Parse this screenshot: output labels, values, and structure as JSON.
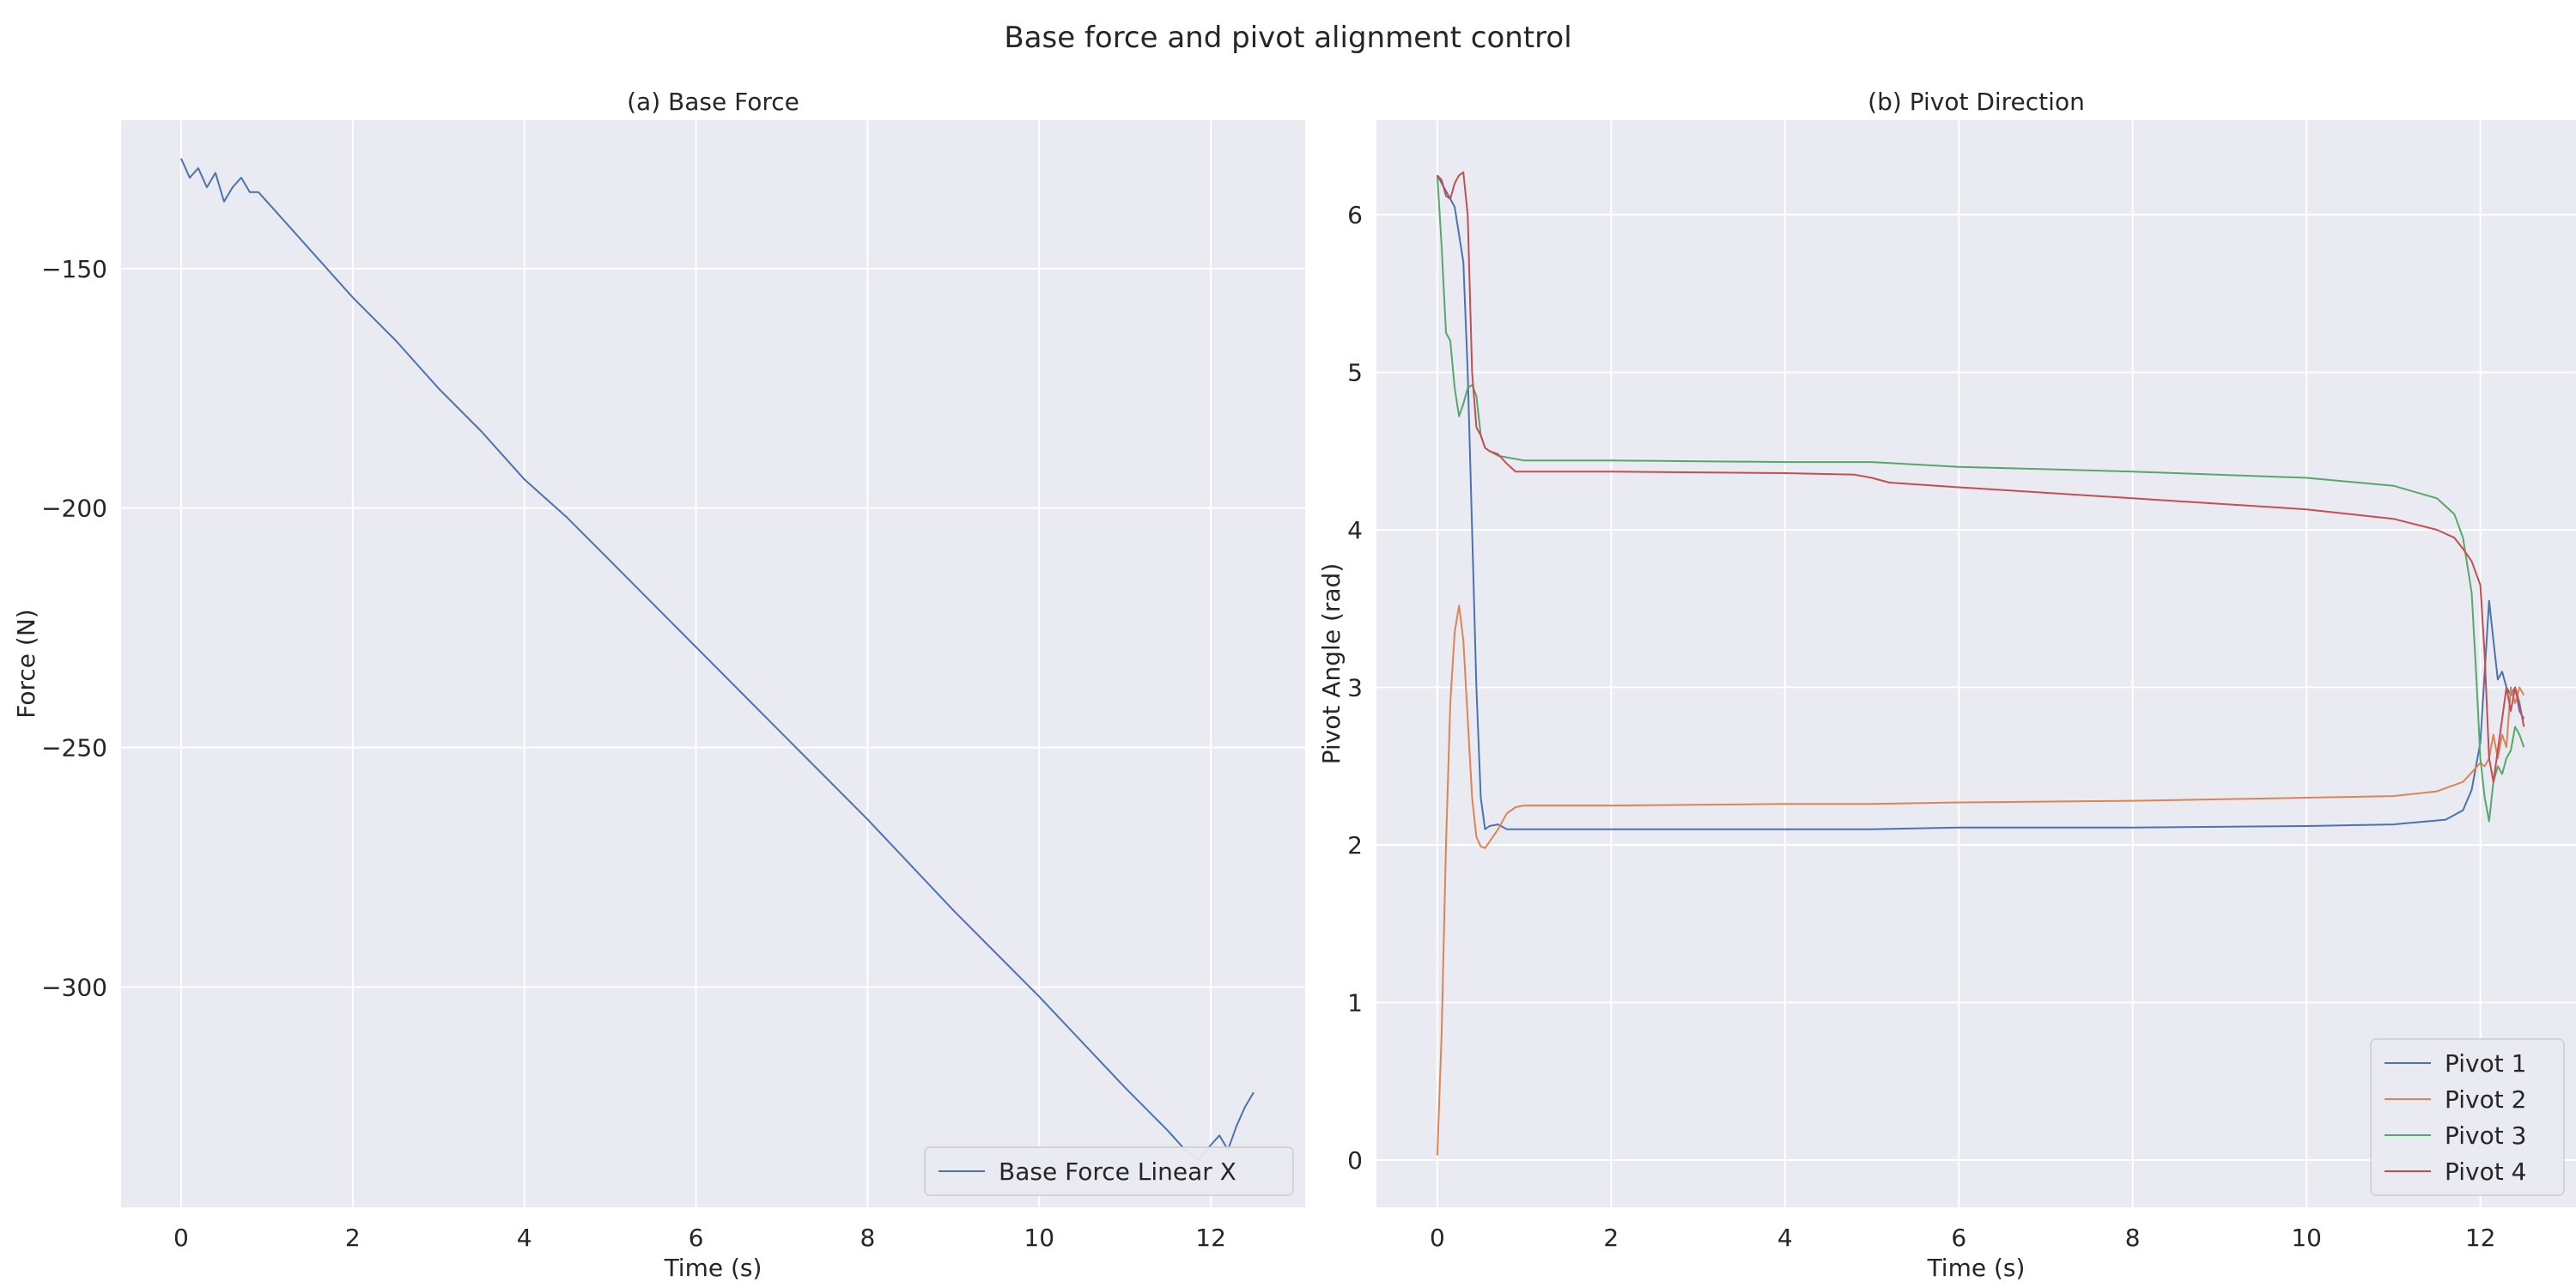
{
  "figure": {
    "title": "Base force and pivot alignment control"
  },
  "chart_data": [
    {
      "type": "line",
      "title": "(a) Base Force",
      "xlabel": "Time (s)",
      "ylabel": "Force (N)",
      "xlim": [
        -0.7,
        13.1
      ],
      "ylim": [
        -346,
        -119
      ],
      "xticks": [
        0,
        2,
        4,
        6,
        8,
        10,
        12
      ],
      "yticks": [
        -150,
        -200,
        -250,
        -300
      ],
      "xtick_labels": [
        "0",
        "2",
        "4",
        "6",
        "8",
        "10",
        "12"
      ],
      "ytick_labels": [
        "−150",
        "−200",
        "−250",
        "−300"
      ],
      "grid": true,
      "legend": "bottom-right",
      "series": [
        {
          "name": "Base Force Linear X",
          "color": "#4c72b0",
          "x": [
            0,
            0.1,
            0.2,
            0.3,
            0.4,
            0.5,
            0.6,
            0.7,
            0.8,
            0.9,
            1.0,
            1.5,
            2.0,
            2.5,
            3.0,
            3.5,
            4.0,
            4.5,
            5.0,
            6.0,
            7.0,
            8.0,
            9.0,
            10.0,
            11.0,
            11.5,
            11.7,
            11.85,
            12.0,
            12.1,
            12.2,
            12.3,
            12.4,
            12.5
          ],
          "y": [
            -127,
            -131,
            -129,
            -133,
            -130,
            -136,
            -133,
            -131,
            -134,
            -134,
            -136,
            -146,
            -156,
            -165,
            -175,
            -184,
            -194,
            -202,
            -211,
            -229,
            -247,
            -265,
            -284,
            -302,
            -321,
            -330,
            -334,
            -336,
            -333,
            -331,
            -334,
            -329,
            -325,
            -322
          ]
        }
      ]
    },
    {
      "type": "line",
      "title": "(b) Pivot Direction",
      "xlabel": "Time (s)",
      "ylabel": "Pivot Angle (rad)",
      "xlim": [
        -0.7,
        13.1
      ],
      "ylim": [
        -0.3,
        6.6
      ],
      "xticks": [
        0,
        2,
        4,
        6,
        8,
        10,
        12
      ],
      "yticks": [
        0,
        1,
        2,
        3,
        4,
        5,
        6
      ],
      "xtick_labels": [
        "0",
        "2",
        "4",
        "6",
        "8",
        "10",
        "12"
      ],
      "ytick_labels": [
        "0",
        "1",
        "2",
        "3",
        "4",
        "5",
        "6"
      ],
      "grid": true,
      "legend": "bottom-right",
      "series": [
        {
          "name": "Pivot 1",
          "color": "#4c72b0",
          "x": [
            0,
            0.1,
            0.2,
            0.3,
            0.35,
            0.4,
            0.45,
            0.5,
            0.55,
            0.6,
            0.7,
            0.8,
            1.0,
            2,
            4,
            5,
            6,
            8,
            10,
            11,
            11.6,
            11.8,
            11.9,
            12.0,
            12.05,
            12.1,
            12.15,
            12.2,
            12.25,
            12.3,
            12.35,
            12.4,
            12.45,
            12.5
          ],
          "y": [
            6.25,
            6.15,
            6.05,
            5.7,
            5.0,
            4.0,
            3.0,
            2.3,
            2.1,
            2.12,
            2.13,
            2.1,
            2.1,
            2.1,
            2.1,
            2.1,
            2.11,
            2.11,
            2.12,
            2.13,
            2.16,
            2.22,
            2.35,
            2.65,
            3.1,
            3.55,
            3.3,
            3.05,
            3.1,
            3.0,
            2.95,
            3.0,
            2.85,
            2.8
          ]
        },
        {
          "name": "Pivot 2",
          "color": "#dd8452",
          "x": [
            0,
            0.05,
            0.1,
            0.15,
            0.2,
            0.25,
            0.3,
            0.35,
            0.4,
            0.45,
            0.5,
            0.55,
            0.6,
            0.7,
            0.8,
            0.9,
            1.0,
            2,
            4,
            5,
            6,
            8,
            10,
            11,
            11.5,
            11.8,
            11.9,
            12.0,
            12.05,
            12.1,
            12.15,
            12.2,
            12.25,
            12.3,
            12.35,
            12.4,
            12.45,
            12.5
          ],
          "y": [
            0.03,
            0.8,
            2.0,
            2.9,
            3.35,
            3.52,
            3.3,
            2.8,
            2.3,
            2.05,
            1.99,
            1.98,
            2.02,
            2.1,
            2.2,
            2.24,
            2.25,
            2.25,
            2.26,
            2.26,
            2.27,
            2.28,
            2.3,
            2.31,
            2.34,
            2.4,
            2.46,
            2.52,
            2.5,
            2.55,
            2.7,
            2.55,
            2.7,
            2.62,
            3.0,
            2.9,
            3.0,
            2.95
          ]
        },
        {
          "name": "Pivot 3",
          "color": "#55a868",
          "x": [
            0,
            0.05,
            0.1,
            0.15,
            0.2,
            0.25,
            0.3,
            0.35,
            0.4,
            0.45,
            0.5,
            0.55,
            0.6,
            0.7,
            0.8,
            1.0,
            2,
            4,
            5,
            6,
            8,
            10,
            11,
            11.5,
            11.7,
            11.8,
            11.9,
            11.95,
            12.0,
            12.05,
            12.1,
            12.15,
            12.2,
            12.25,
            12.3,
            12.35,
            12.4,
            12.45,
            12.5
          ],
          "y": [
            6.25,
            5.8,
            5.25,
            5.2,
            4.9,
            4.72,
            4.8,
            4.9,
            4.92,
            4.85,
            4.6,
            4.52,
            4.5,
            4.47,
            4.46,
            4.44,
            4.44,
            4.43,
            4.43,
            4.4,
            4.37,
            4.33,
            4.28,
            4.2,
            4.1,
            3.95,
            3.6,
            3.1,
            2.55,
            2.3,
            2.15,
            2.4,
            2.5,
            2.45,
            2.55,
            2.6,
            2.75,
            2.7,
            2.62
          ]
        },
        {
          "name": "Pivot 4",
          "color": "#c44e52",
          "x": [
            0,
            0.05,
            0.1,
            0.15,
            0.2,
            0.25,
            0.3,
            0.35,
            0.4,
            0.45,
            0.5,
            0.55,
            0.6,
            0.7,
            0.8,
            0.9,
            1.0,
            2,
            4,
            4.8,
            5.0,
            5.2,
            6,
            8,
            10,
            11,
            11.5,
            11.7,
            11.8,
            11.9,
            12.0,
            12.05,
            12.1,
            12.15,
            12.2,
            12.25,
            12.3,
            12.35,
            12.4,
            12.45,
            12.5
          ],
          "y": [
            6.25,
            6.22,
            6.12,
            6.1,
            6.2,
            6.25,
            6.27,
            6.0,
            5.0,
            4.65,
            4.6,
            4.52,
            4.5,
            4.48,
            4.42,
            4.37,
            4.37,
            4.37,
            4.36,
            4.35,
            4.33,
            4.3,
            4.27,
            4.2,
            4.13,
            4.07,
            4.0,
            3.95,
            3.88,
            3.8,
            3.65,
            3.2,
            2.55,
            2.4,
            2.6,
            2.8,
            3.0,
            2.85,
            3.0,
            2.9,
            2.75
          ]
        }
      ]
    }
  ]
}
